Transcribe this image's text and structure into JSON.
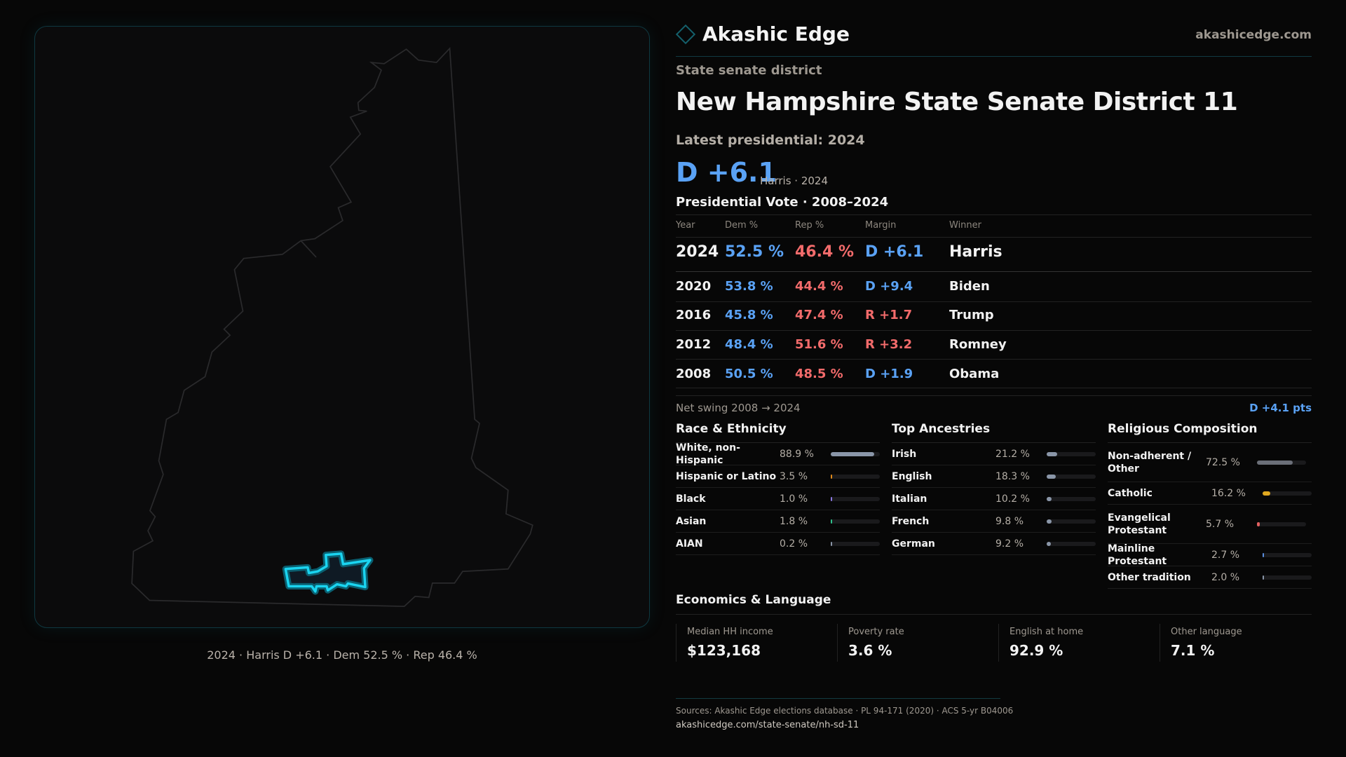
{
  "colors": {
    "accent": "#14606c",
    "dem": "#5aa2f5",
    "rep": "#f26b6b",
    "district": "#1ad4f0"
  },
  "brand": {
    "name": "Akashic Edge",
    "site": "akashicedge.com",
    "logo_icon": "diamond-icon"
  },
  "map": {
    "caption": "2024 · Harris D +6.1 · Dem 52.5 % · Rep 46.4 %"
  },
  "header": {
    "kicker": "State senate district",
    "title": "New Hampshire State Senate District 11",
    "latest": "Latest presidential: 2024",
    "margin": "D +6.1",
    "margin_sub": "Harris · 2024"
  },
  "presidential": {
    "title": "Presidential Vote · 2008–2024",
    "columns": [
      "Year",
      "Dem %",
      "Rep %",
      "Margin",
      "Winner"
    ],
    "rows": [
      {
        "year": "2024",
        "dem": "52.5 %",
        "rep": "46.4 %",
        "margin": "D +6.1",
        "party": "dem",
        "winner": "Harris"
      },
      {
        "year": "2020",
        "dem": "53.8 %",
        "rep": "44.4 %",
        "margin": "D +9.4",
        "party": "dem",
        "winner": "Biden"
      },
      {
        "year": "2016",
        "dem": "45.8 %",
        "rep": "47.4 %",
        "margin": "R +1.7",
        "party": "rep",
        "winner": "Trump"
      },
      {
        "year": "2012",
        "dem": "48.4 %",
        "rep": "51.6 %",
        "margin": "R +3.2",
        "party": "rep",
        "winner": "Romney"
      },
      {
        "year": "2008",
        "dem": "50.5 %",
        "rep": "48.5 %",
        "margin": "D +1.9",
        "party": "dem",
        "winner": "Obama"
      }
    ],
    "swing_label": "Net swing 2008 → 2024",
    "swing_value": "D +4.1 pts"
  },
  "demographics": [
    {
      "title": "Race & Ethnicity",
      "items": [
        {
          "label": "White, non-Hispanic",
          "value": "88.9 %",
          "pct": 88.9,
          "color": "#8a96a8"
        },
        {
          "label": "Hispanic or Latino",
          "value": "3.5 %",
          "pct": 3.5,
          "color": "#e08a1a"
        },
        {
          "label": "Black",
          "value": "1.0 %",
          "pct": 1.0,
          "color": "#8a78e0"
        },
        {
          "label": "Asian",
          "value": "1.8 %",
          "pct": 1.8,
          "color": "#2fbf8a"
        },
        {
          "label": "AIAN",
          "value": "0.2 %",
          "pct": 0.2,
          "color": "#8a96a8"
        }
      ]
    },
    {
      "title": "Top Ancestries",
      "items": [
        {
          "label": "Irish",
          "value": "21.2 %",
          "pct": 21.2,
          "color": "#8a96a8"
        },
        {
          "label": "English",
          "value": "18.3 %",
          "pct": 18.3,
          "color": "#8a96a8"
        },
        {
          "label": "Italian",
          "value": "10.2 %",
          "pct": 10.2,
          "color": "#8a96a8"
        },
        {
          "label": "French",
          "value": "9.8 %",
          "pct": 9.8,
          "color": "#8a96a8"
        },
        {
          "label": "German",
          "value": "9.2 %",
          "pct": 9.2,
          "color": "#8a96a8"
        }
      ]
    },
    {
      "title": "Religious Composition",
      "items": [
        {
          "label": "Non-adherent / Other",
          "value": "72.5 %",
          "pct": 72.5,
          "color": "#6b6f78"
        },
        {
          "label": "Catholic",
          "value": "16.2 %",
          "pct": 16.2,
          "color": "#e0a820"
        },
        {
          "label": "Evangelical Protestant",
          "value": "5.7 %",
          "pct": 5.7,
          "color": "#e06060"
        },
        {
          "label": "Mainline Protestant",
          "value": "2.7 %",
          "pct": 2.7,
          "color": "#5a8fe0"
        },
        {
          "label": "Other tradition",
          "value": "2.0 %",
          "pct": 2.0,
          "color": "#8a96a8"
        }
      ]
    }
  ],
  "economics": {
    "title": "Economics & Language",
    "cards": [
      {
        "label": "Median HH income",
        "value": "$123,168"
      },
      {
        "label": "Poverty rate",
        "value": "3.6 %"
      },
      {
        "label": "English at home",
        "value": "92.9 %"
      },
      {
        "label": "Other language",
        "value": "7.1 %"
      }
    ]
  },
  "footer": {
    "sources": "Sources: Akashic Edge elections database · PL 94-171 (2020) · ACS 5-yr B04006",
    "url": "akashicedge.com/state-senate/nh-sd-11"
  }
}
